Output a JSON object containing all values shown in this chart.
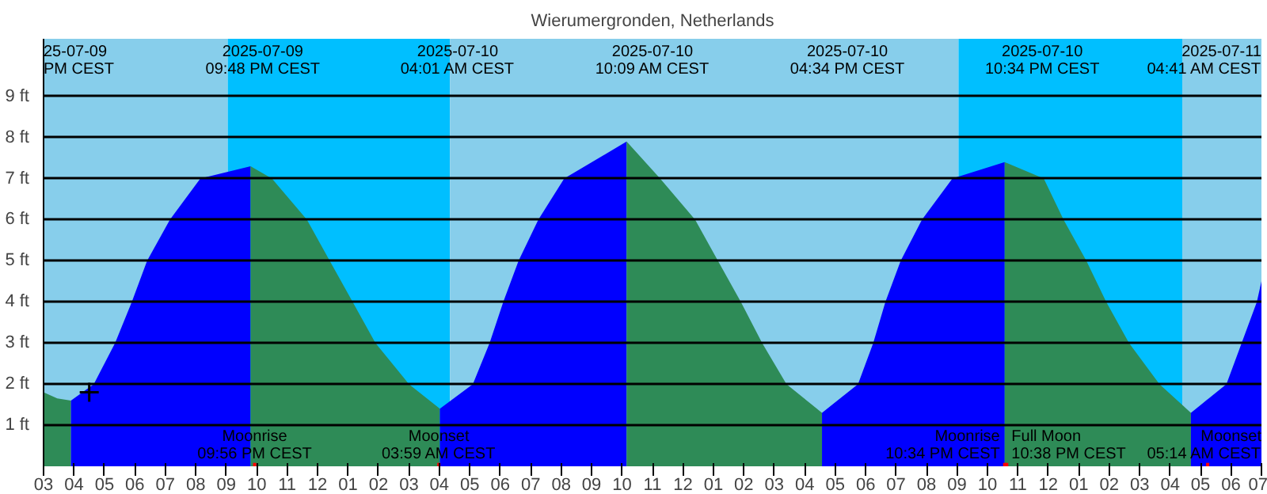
{
  "chart_data": {
    "type": "area",
    "title": "Wierumergronden, Netherlands",
    "xlim": [
      "2025-07-09T15:00",
      "2025-07-11T07:00"
    ],
    "ylim": [
      0,
      10.4
    ],
    "yticks": [
      {
        "value": 1,
        "label": "1 ft"
      },
      {
        "value": 2,
        "label": "2 ft"
      },
      {
        "value": 3,
        "label": "3 ft"
      },
      {
        "value": 4,
        "label": "4 ft"
      },
      {
        "value": 5,
        "label": "5 ft"
      },
      {
        "value": 6,
        "label": "6 ft"
      },
      {
        "value": 7,
        "label": "7 ft"
      },
      {
        "value": 8,
        "label": "8 ft"
      },
      {
        "value": 9,
        "label": "9 ft"
      }
    ],
    "xticks": [
      {
        "value": "2025-07-09T15:00",
        "label": "03"
      },
      {
        "value": "2025-07-09T16:00",
        "label": "04"
      },
      {
        "value": "2025-07-09T17:00",
        "label": "05"
      },
      {
        "value": "2025-07-09T18:00",
        "label": "06"
      },
      {
        "value": "2025-07-09T19:00",
        "label": "07"
      },
      {
        "value": "2025-07-09T20:00",
        "label": "08"
      },
      {
        "value": "2025-07-09T21:00",
        "label": "09"
      },
      {
        "value": "2025-07-09T22:00",
        "label": "10"
      },
      {
        "value": "2025-07-09T23:00",
        "label": "11"
      },
      {
        "value": "2025-07-10T00:00",
        "label": "12"
      },
      {
        "value": "2025-07-10T01:00",
        "label": "01"
      },
      {
        "value": "2025-07-10T02:00",
        "label": "02"
      },
      {
        "value": "2025-07-10T03:00",
        "label": "03"
      },
      {
        "value": "2025-07-10T04:00",
        "label": "04"
      },
      {
        "value": "2025-07-10T05:00",
        "label": "05"
      },
      {
        "value": "2025-07-10T06:00",
        "label": "06"
      },
      {
        "value": "2025-07-10T07:00",
        "label": "07"
      },
      {
        "value": "2025-07-10T08:00",
        "label": "08"
      },
      {
        "value": "2025-07-10T09:00",
        "label": "09"
      },
      {
        "value": "2025-07-10T10:00",
        "label": "10"
      },
      {
        "value": "2025-07-10T11:00",
        "label": "11"
      },
      {
        "value": "2025-07-10T12:00",
        "label": "12"
      },
      {
        "value": "2025-07-10T13:00",
        "label": "01"
      },
      {
        "value": "2025-07-10T14:00",
        "label": "02"
      },
      {
        "value": "2025-07-10T15:00",
        "label": "03"
      },
      {
        "value": "2025-07-10T16:00",
        "label": "04"
      },
      {
        "value": "2025-07-10T17:00",
        "label": "05"
      },
      {
        "value": "2025-07-10T18:00",
        "label": "06"
      },
      {
        "value": "2025-07-10T19:00",
        "label": "07"
      },
      {
        "value": "2025-07-10T20:00",
        "label": "08"
      },
      {
        "value": "2025-07-10T21:00",
        "label": "09"
      },
      {
        "value": "2025-07-10T22:00",
        "label": "10"
      },
      {
        "value": "2025-07-10T23:00",
        "label": "11"
      },
      {
        "value": "2025-07-11T00:00",
        "label": "12"
      },
      {
        "value": "2025-07-11T01:00",
        "label": "01"
      },
      {
        "value": "2025-07-11T02:00",
        "label": "02"
      },
      {
        "value": "2025-07-11T03:00",
        "label": "03"
      },
      {
        "value": "2025-07-11T04:00",
        "label": "04"
      },
      {
        "value": "2025-07-11T05:00",
        "label": "05"
      },
      {
        "value": "2025-07-11T06:00",
        "label": "06"
      },
      {
        "value": "2025-07-11T07:00",
        "label": "07"
      }
    ],
    "grid": "y",
    "series": [
      {
        "color": "#2e8b57",
        "x": [
          "2025-07-09T15:00",
          "2025-07-09T15:27",
          "2025-07-09T15:54"
        ],
        "values": [
          1.8,
          1.65,
          1.6
        ]
      },
      {
        "color": "#0000ff",
        "x": [
          "2025-07-09T15:54",
          "2025-07-09T16:39",
          "2025-07-09T17:21",
          "2025-07-09T17:54",
          "2025-07-09T18:24",
          "2025-07-09T19:09",
          "2025-07-09T20:09",
          "2025-07-09T21:48"
        ],
        "values": [
          1.6,
          2,
          3,
          4,
          5,
          6,
          7,
          7.3
        ]
      },
      {
        "color": "#2e8b57",
        "x": [
          "2025-07-09T21:48",
          "2025-07-09T22:30",
          "2025-07-09T23:39",
          "2025-07-10T00:24",
          "2025-07-10T01:09",
          "2025-07-10T01:54",
          "2025-07-10T03:00",
          "2025-07-10T04:01"
        ],
        "values": [
          7.3,
          7,
          6,
          5,
          4,
          3,
          2,
          1.4
        ]
      },
      {
        "color": "#0000ff",
        "x": [
          "2025-07-10T04:01",
          "2025-07-10T05:06",
          "2025-07-10T05:39",
          "2025-07-10T06:06",
          "2025-07-10T06:36",
          "2025-07-10T07:15",
          "2025-07-10T08:06",
          "2025-07-10T10:09"
        ],
        "values": [
          1.4,
          2,
          3,
          4,
          5,
          6,
          7,
          7.9
        ]
      },
      {
        "color": "#2e8b57",
        "x": [
          "2025-07-10T10:09",
          "2025-07-10T11:15",
          "2025-07-10T12:24",
          "2025-07-10T13:09",
          "2025-07-10T13:54",
          "2025-07-10T14:36",
          "2025-07-10T15:24",
          "2025-07-10T16:34"
        ],
        "values": [
          7.9,
          7,
          6,
          5,
          4,
          3,
          2,
          1.3
        ]
      },
      {
        "color": "#0000ff",
        "x": [
          "2025-07-10T16:34",
          "2025-07-10T17:45",
          "2025-07-10T18:15",
          "2025-07-10T18:39",
          "2025-07-10T19:09",
          "2025-07-10T19:51",
          "2025-07-10T20:51",
          "2025-07-10T22:34"
        ],
        "values": [
          1.3,
          2,
          3,
          4,
          5,
          6,
          7,
          7.4
        ]
      },
      {
        "color": "#2e8b57",
        "x": [
          "2025-07-10T22:34",
          "2025-07-10T23:51",
          "2025-07-11T00:30",
          "2025-07-11T01:15",
          "2025-07-11T01:54",
          "2025-07-11T02:39",
          "2025-07-11T03:39",
          "2025-07-11T04:41"
        ],
        "values": [
          7.4,
          7,
          6,
          5,
          4,
          3,
          2,
          1.3
        ]
      },
      {
        "color": "#0000ff",
        "x": [
          "2025-07-11T04:41",
          "2025-07-11T05:51",
          "2025-07-11T06:21",
          "2025-07-11T06:51",
          "2025-07-11T07:00"
        ],
        "values": [
          1.3,
          2,
          3,
          4,
          4.5
        ]
      },
      {
        "type": "scatter",
        "marker": "cross",
        "color": "#000000",
        "x": [
          "2025-07-09T16:30"
        ],
        "values": [
          1.8
        ]
      }
    ],
    "bands": [
      {
        "axis": "x",
        "from": "2025-07-09T15:00",
        "to": "2025-07-09T21:03",
        "color": "#87ceeb"
      },
      {
        "axis": "x",
        "from": "2025-07-09T21:03",
        "to": "2025-07-10T04:21",
        "color": "#00bfff"
      },
      {
        "axis": "x",
        "from": "2025-07-10T04:21",
        "to": "2025-07-10T21:03",
        "color": "#87ceeb"
      },
      {
        "axis": "x",
        "from": "2025-07-10T21:03",
        "to": "2025-07-11T04:24",
        "color": "#00bfff"
      },
      {
        "axis": "x",
        "from": "2025-07-11T04:24",
        "to": "2025-07-11T07:00",
        "color": "#87ceeb"
      }
    ],
    "ref_lines": [
      {
        "axis": "x",
        "value": "2025-07-09T21:56",
        "label": "Moonrise\n09:56 PM CEST",
        "color": "#ff0000"
      },
      {
        "axis": "x",
        "value": "2025-07-10T03:59",
        "label": "Moonset\n03:59 AM CEST",
        "color": "#ff0000"
      },
      {
        "axis": "x",
        "value": "2025-07-10T22:34",
        "label": "Moonrise\n10:34 PM CEST",
        "color": "#ff0000"
      },
      {
        "axis": "x",
        "value": "2025-07-10T22:38",
        "label": "Full Moon\n10:38 PM CEST",
        "color": "#ff0000"
      },
      {
        "axis": "x",
        "value": "2025-07-11T05:14",
        "label": "Moonset\n05:14 AM CEST",
        "color": "#ff0000"
      }
    ],
    "annotations": [
      "25-07-09\nPM CEST",
      "2025-07-09\n09:48 PM CEST",
      "2025-07-10\n04:01 AM CEST",
      "2025-07-10\n10:09 AM CEST",
      "2025-07-10\n04:34 PM CEST",
      "2025-07-10\n10:34 PM CEST",
      "2025-07-11\n04:41 AM CEST"
    ]
  }
}
